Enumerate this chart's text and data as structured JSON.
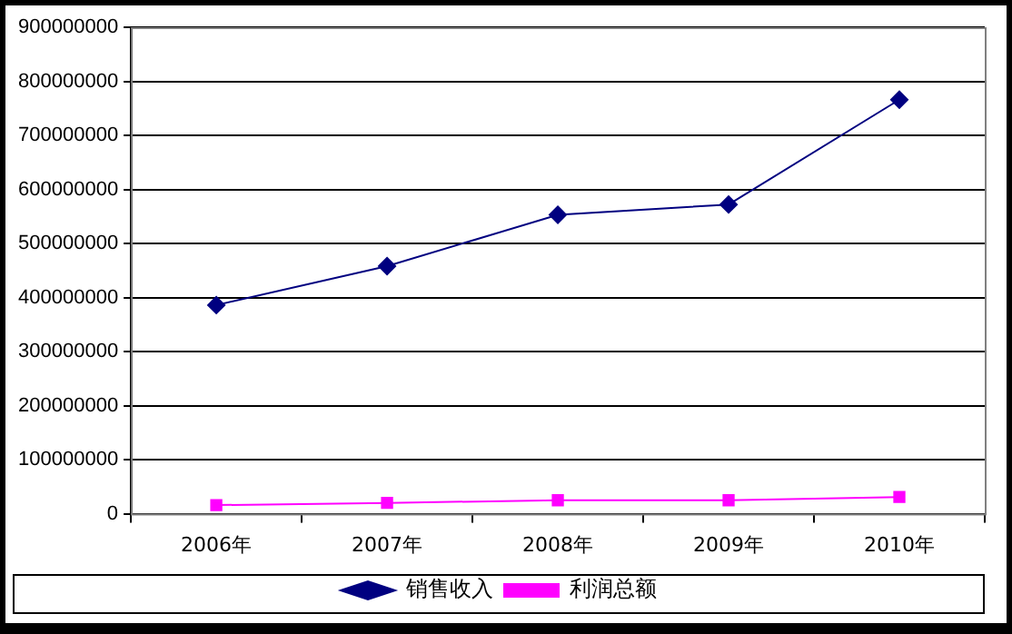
{
  "chart_data": {
    "type": "line",
    "categories": [
      "2006年",
      "2007年",
      "2008年",
      "2009年",
      "2010年"
    ],
    "series": [
      {
        "name": "销售收入",
        "color": "#000080",
        "marker": "diamond",
        "values": [
          386000000,
          458000000,
          553000000,
          572000000,
          766000000
        ]
      },
      {
        "name": "利润总额",
        "color": "#ff00ff",
        "marker": "square",
        "values": [
          16000000,
          20000000,
          25000000,
          25000000,
          31000000
        ]
      }
    ],
    "ylim": [
      0,
      900000000
    ],
    "yticks": [
      0,
      100000000,
      200000000,
      300000000,
      400000000,
      500000000,
      600000000,
      700000000,
      800000000,
      900000000
    ],
    "grid": "y",
    "legend": "bottom"
  }
}
